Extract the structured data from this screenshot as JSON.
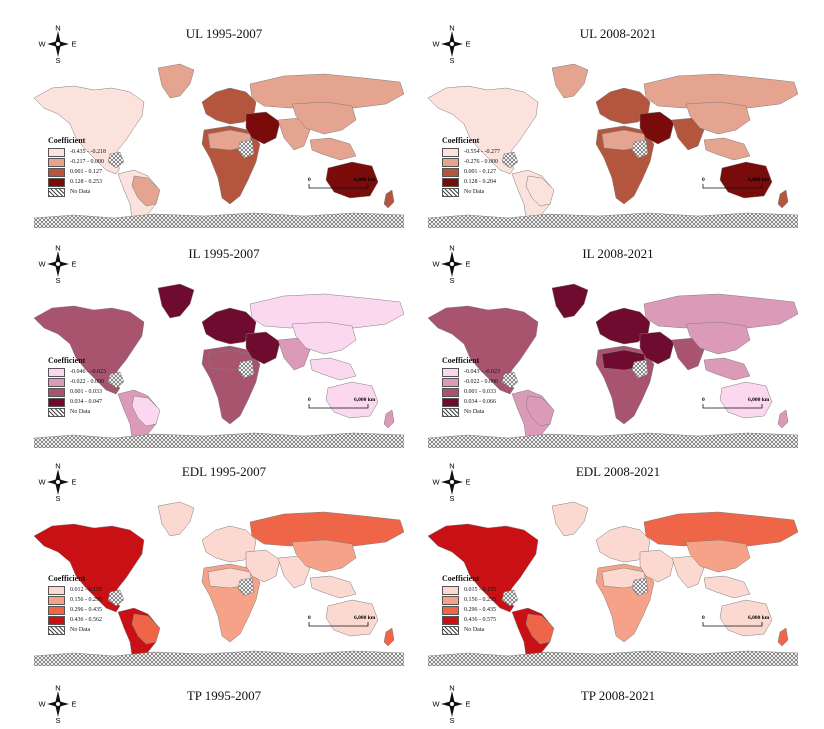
{
  "compass": {
    "n": "N",
    "s": "S",
    "e": "E",
    "w": "W"
  },
  "legend_title": "Coefficient",
  "no_data_label": "No Data",
  "scale_zero": "0",
  "scale_label": "6,000 km",
  "panels": [
    {
      "id": "ul1",
      "title": "UL 1995-2007",
      "classes": [
        {
          "label": "-0.435 - -0.218",
          "color": "#fbe2dc"
        },
        {
          "label": "-0.217 - 0.000",
          "color": "#e5a48f"
        },
        {
          "label": "0.001 - 0.127",
          "color": "#b4563d"
        },
        {
          "label": "0.128 - 0.253",
          "color": "#7a0b0b"
        }
      ],
      "regions": {
        "north_america": 0,
        "greenland": 1,
        "south_america": 0,
        "brazil": 1,
        "europe": 2,
        "africa": 2,
        "sahel": 1,
        "russia": 1,
        "middle_east": 3,
        "south_asia": 1,
        "east_asia": 1,
        "se_asia": 1,
        "australia": 3,
        "nz": 2
      }
    },
    {
      "id": "ul2",
      "title": "UL 2008-2021",
      "classes": [
        {
          "label": "-0.554 - -0.277",
          "color": "#fbe2dc"
        },
        {
          "label": "-0.276 - 0.000",
          "color": "#e5a48f"
        },
        {
          "label": "0.001 - 0.127",
          "color": "#b4563d"
        },
        {
          "label": "0.128 - 0.204",
          "color": "#7a0b0b"
        }
      ],
      "regions": {
        "north_america": 0,
        "greenland": 1,
        "south_america": 0,
        "brazil": 0,
        "europe": 2,
        "africa": 2,
        "sahel": 1,
        "russia": 1,
        "middle_east": 3,
        "south_asia": 2,
        "east_asia": 1,
        "se_asia": 1,
        "australia": 3,
        "nz": 2
      }
    },
    {
      "id": "il1",
      "title": "IL 1995-2007",
      "classes": [
        {
          "label": "-0.046 - -0.023",
          "color": "#fbd8ef"
        },
        {
          "label": "-0.022 - 0.000",
          "color": "#dc9ab9"
        },
        {
          "label": "0.001 - 0.033",
          "color": "#a8546f"
        },
        {
          "label": "0.034 - 0.047",
          "color": "#6e0b2e"
        }
      ],
      "regions": {
        "north_america": 2,
        "greenland": 3,
        "south_america": 1,
        "brazil": 0,
        "europe": 3,
        "africa": 2,
        "sahel": 2,
        "russia": 0,
        "middle_east": 3,
        "south_asia": 1,
        "east_asia": 0,
        "se_asia": 0,
        "australia": 0,
        "nz": 1
      }
    },
    {
      "id": "il2",
      "title": "IL 2008-2021",
      "classes": [
        {
          "label": "-0.043 - -0.023",
          "color": "#fbd8ef"
        },
        {
          "label": "-0.022 - 0.000",
          "color": "#dc9ab9"
        },
        {
          "label": "0.001 - 0.033",
          "color": "#a8546f"
        },
        {
          "label": "0.034 - 0.066",
          "color": "#6e0b2e"
        }
      ],
      "regions": {
        "north_america": 2,
        "greenland": 3,
        "south_america": 1,
        "brazil": 1,
        "europe": 3,
        "africa": 2,
        "sahel": 3,
        "russia": 1,
        "middle_east": 3,
        "south_asia": 2,
        "east_asia": 1,
        "se_asia": 1,
        "australia": 0,
        "nz": 1
      }
    },
    {
      "id": "edl1",
      "title": "EDL 1995-2007",
      "classes": [
        {
          "label": "0.012 - 0.155",
          "color": "#fcd9d0"
        },
        {
          "label": "0.156 - 0.295",
          "color": "#f6a289"
        },
        {
          "label": "0.296 - 0.435",
          "color": "#ee6548"
        },
        {
          "label": "0.436 - 0.562",
          "color": "#c91014"
        }
      ],
      "regions": {
        "north_america": 3,
        "greenland": 0,
        "south_america": 3,
        "brazil": 2,
        "europe": 0,
        "africa": 1,
        "sahel": 0,
        "russia": 2,
        "middle_east": 0,
        "south_asia": 0,
        "east_asia": 1,
        "se_asia": 0,
        "australia": 0,
        "nz": 2
      }
    },
    {
      "id": "edl2",
      "title": "EDL 2008-2021",
      "classes": [
        {
          "label": "0.015 - 0.155",
          "color": "#fcd9d0"
        },
        {
          "label": "0.156 - 0.295",
          "color": "#f6a289"
        },
        {
          "label": "0.296 - 0.435",
          "color": "#ee6548"
        },
        {
          "label": "0.436 - 0.575",
          "color": "#c91014"
        }
      ],
      "regions": {
        "north_america": 3,
        "greenland": 0,
        "south_america": 3,
        "brazil": 2,
        "europe": 0,
        "africa": 1,
        "sahel": 0,
        "russia": 2,
        "middle_east": 0,
        "south_asia": 0,
        "east_asia": 1,
        "se_asia": 0,
        "australia": 0,
        "nz": 2
      }
    }
  ],
  "bottom_titles": [
    "TP 1995-2007",
    "TP 2008-2021"
  ],
  "colors": {
    "outline": "#7d7d7d",
    "no_data_stroke": "#444444",
    "background": "#ffffff"
  }
}
